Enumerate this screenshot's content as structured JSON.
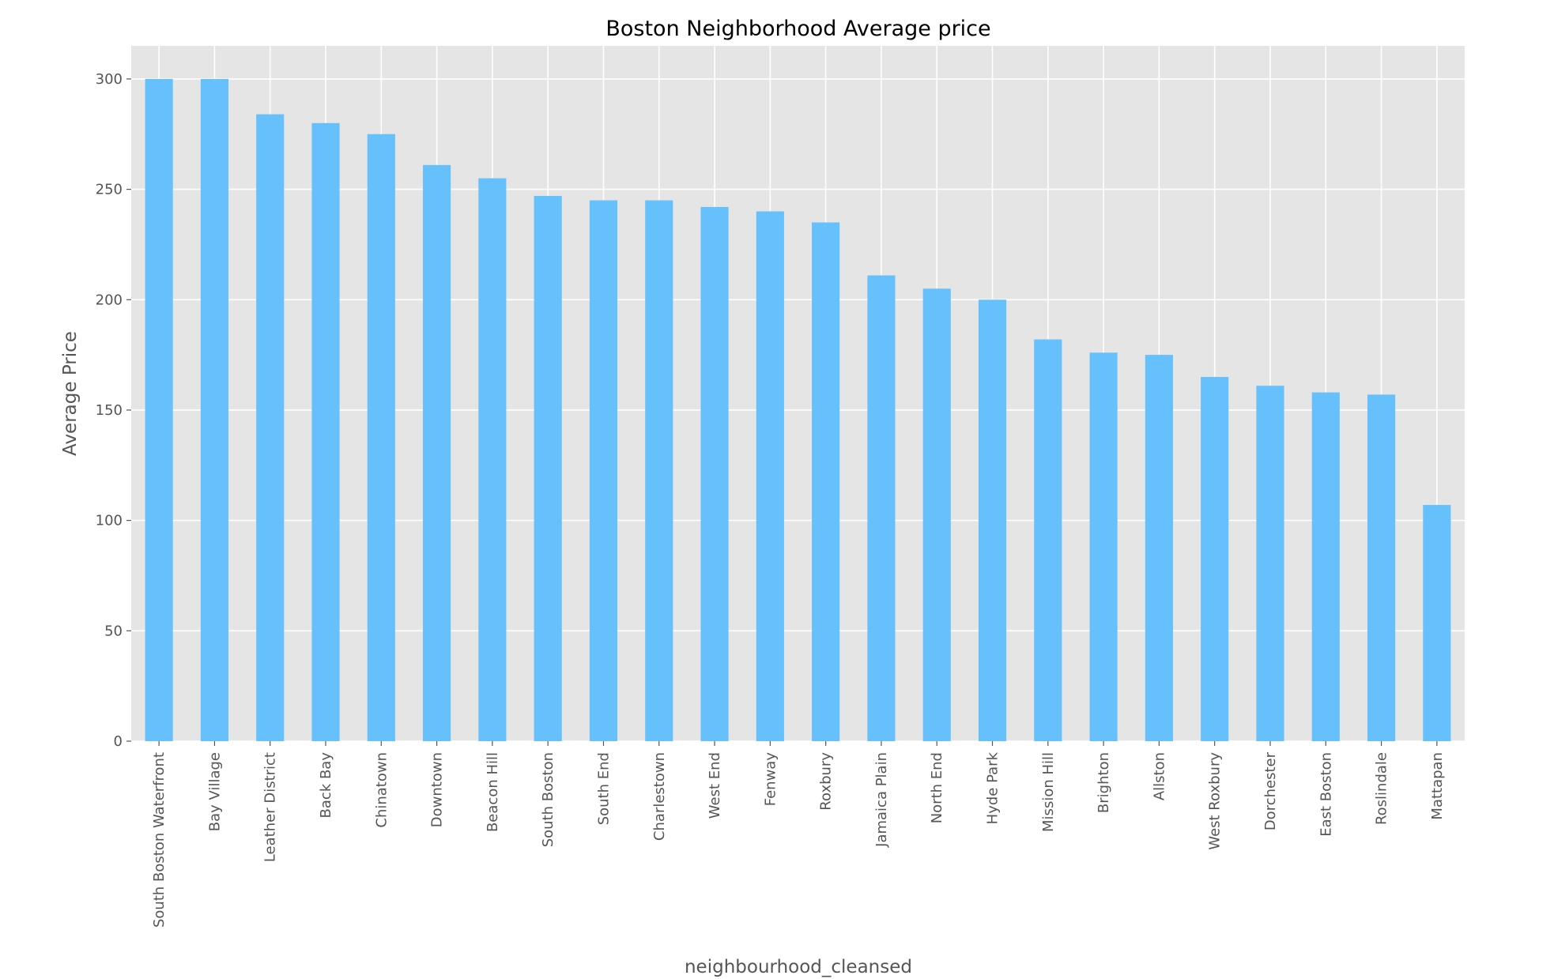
{
  "chart_data": {
    "type": "bar",
    "title": "Boston Neighborhood Average price",
    "xlabel": "neighbourhood_cleansed",
    "ylabel": "Average Price",
    "ylim": [
      0,
      315
    ],
    "yticks": [
      0,
      50,
      100,
      150,
      200,
      250,
      300
    ],
    "grid": true,
    "bar_color": "#66c0fc",
    "background_color": "#e5e5e5",
    "categories": [
      "South Boston Waterfront",
      "Bay Village",
      "Leather District",
      "Back Bay",
      "Chinatown",
      "Downtown",
      "Beacon Hill",
      "South Boston",
      "South End",
      "Charlestown",
      "West End",
      "Fenway",
      "Roxbury",
      "Jamaica Plain",
      "North End",
      "Hyde Park",
      "Mission Hill",
      "Brighton",
      "Allston",
      "West Roxbury",
      "Dorchester",
      "East Boston",
      "Roslindale",
      "Mattapan"
    ],
    "values": [
      300,
      300,
      284,
      280,
      275,
      261,
      255,
      247,
      245,
      245,
      242,
      240,
      235,
      211,
      205,
      200,
      182,
      176,
      175,
      165,
      161,
      158,
      157,
      107
    ]
  }
}
